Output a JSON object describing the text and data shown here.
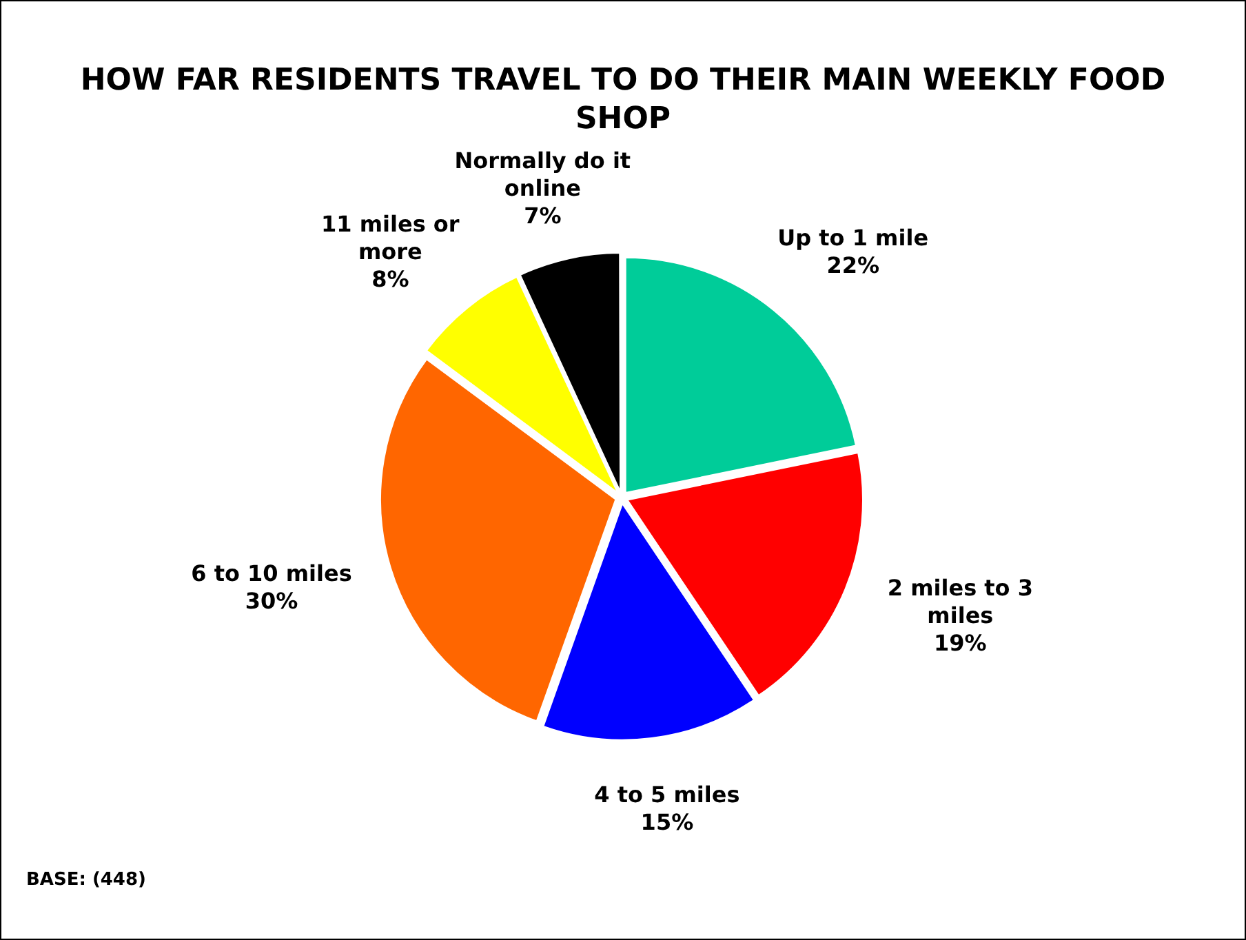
{
  "chart_data": {
    "type": "pie",
    "title": "HOW FAR RESIDENTS TRAVEL TO DO THEIR MAIN WEEKLY FOOD SHOP",
    "categories": [
      "Up to 1 mile",
      "2 miles to 3 miles",
      "4 to 5 miles",
      "6 to 10 miles",
      "11 miles or more",
      "Normally do it online"
    ],
    "values": [
      22,
      19,
      15,
      30,
      8,
      7
    ],
    "value_labels": [
      "22%",
      "19%",
      "15%",
      "30%",
      "8%",
      "7%"
    ],
    "colors": [
      "#00cc99",
      "#ff0000",
      "#0000ff",
      "#ff6600",
      "#ffff00",
      "#000000"
    ],
    "legend": false,
    "annotations": [
      "BASE: (448)"
    ]
  }
}
